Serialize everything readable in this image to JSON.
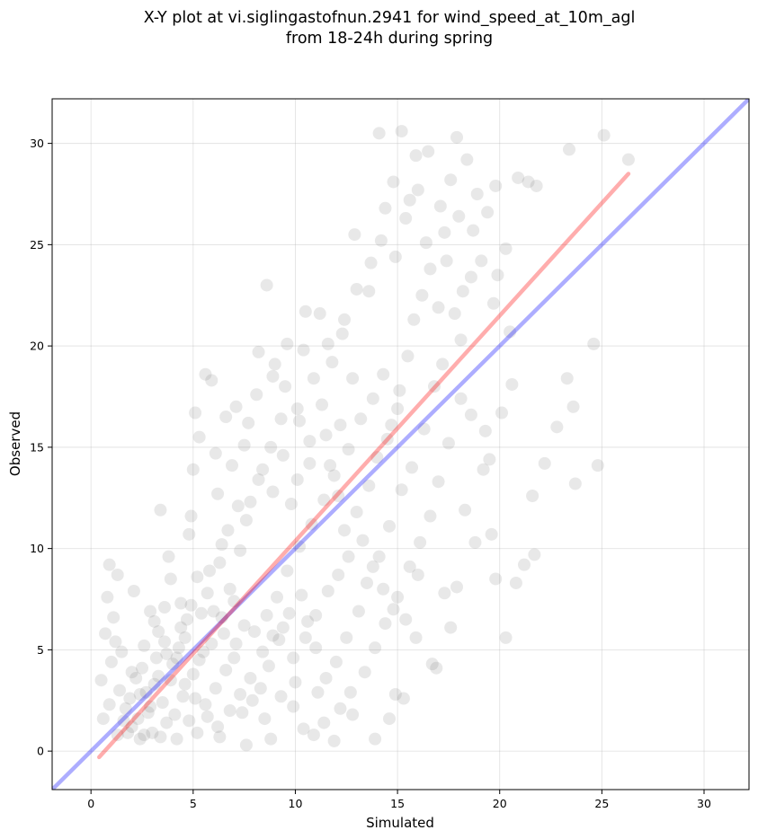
{
  "chart_data": {
    "type": "scatter",
    "title_lines": [
      "X-Y plot at vi.siglingastofnun.2941 for wind_speed_at_10m_agl",
      "from 18-24h during spring"
    ],
    "xlabel": "Simulated",
    "ylabel": "Observed",
    "xlim": [
      -1.9,
      32.2
    ],
    "ylim": [
      -1.9,
      32.2
    ],
    "xticks": [
      0,
      5,
      10,
      15,
      20,
      25,
      30
    ],
    "yticks": [
      0,
      5,
      10,
      15,
      20,
      25,
      30
    ],
    "grid": true,
    "point_color": "#505050",
    "point_opacity": 0.13,
    "points_sample": [
      [
        0.9,
        9.2
      ],
      [
        1.3,
        8.7
      ],
      [
        0.8,
        7.6
      ],
      [
        1.1,
        6.6
      ],
      [
        0.7,
        5.8
      ],
      [
        0.5,
        3.5
      ],
      [
        0.6,
        1.6
      ],
      [
        0.9,
        2.3
      ],
      [
        1.0,
        4.4
      ],
      [
        1.4,
        3.0
      ],
      [
        1.7,
        2.1
      ],
      [
        2.0,
        1.2
      ],
      [
        2.4,
        0.6
      ],
      [
        2.8,
        1.9
      ],
      [
        3.1,
        3.3
      ],
      [
        3.4,
        11.9
      ],
      [
        3.9,
        8.5
      ],
      [
        4.4,
        7.3
      ],
      [
        4.8,
        10.7
      ],
      [
        5.0,
        13.9
      ],
      [
        5.1,
        16.7
      ],
      [
        5.3,
        15.5
      ],
      [
        5.6,
        18.6
      ],
      [
        5.9,
        18.3
      ],
      [
        6.1,
        14.7
      ],
      [
        6.6,
        16.5
      ],
      [
        7.1,
        17.0
      ],
      [
        7.5,
        15.1
      ],
      [
        8.2,
        19.7
      ],
      [
        8.6,
        23.0
      ],
      [
        8.9,
        18.5
      ],
      [
        9.6,
        20.1
      ],
      [
        10.2,
        16.3
      ],
      [
        10.5,
        21.7
      ],
      [
        11.2,
        21.6
      ],
      [
        11.8,
        19.2
      ],
      [
        12.3,
        20.6
      ],
      [
        12.9,
        25.5
      ],
      [
        13.6,
        22.7
      ],
      [
        14.1,
        30.5
      ],
      [
        14.4,
        26.8
      ],
      [
        14.8,
        28.1
      ],
      [
        15.2,
        30.6
      ],
      [
        15.6,
        27.2
      ],
      [
        15.9,
        29.4
      ],
      [
        16.5,
        29.6
      ],
      [
        17.3,
        25.6
      ],
      [
        17.9,
        30.3
      ],
      [
        18.4,
        29.2
      ],
      [
        18.9,
        27.5
      ],
      [
        19.4,
        26.6
      ],
      [
        19.8,
        27.9
      ],
      [
        20.3,
        24.8
      ],
      [
        20.9,
        28.3
      ],
      [
        21.4,
        28.1
      ],
      [
        21.8,
        27.9
      ],
      [
        23.4,
        29.7
      ],
      [
        25.1,
        30.4
      ],
      [
        26.3,
        29.2
      ],
      [
        24.6,
        20.1
      ],
      [
        24.8,
        14.1
      ],
      [
        23.7,
        13.2
      ],
      [
        23.6,
        17.0
      ],
      [
        23.3,
        18.4
      ],
      [
        22.8,
        16.0
      ],
      [
        22.2,
        14.2
      ],
      [
        21.6,
        12.6
      ],
      [
        21.7,
        9.7
      ],
      [
        21.2,
        9.2
      ],
      [
        20.8,
        8.3
      ],
      [
        20.3,
        5.6
      ],
      [
        19.8,
        8.5
      ],
      [
        19.6,
        10.7
      ],
      [
        19.2,
        13.9
      ],
      [
        19.5,
        14.4
      ],
      [
        18.8,
        10.3
      ],
      [
        18.3,
        11.9
      ],
      [
        17.9,
        8.1
      ],
      [
        17.6,
        6.1
      ],
      [
        17.3,
        7.8
      ],
      [
        16.7,
        4.3
      ],
      [
        16.9,
        4.1
      ],
      [
        15.9,
        5.6
      ],
      [
        15.3,
        2.6
      ],
      [
        14.6,
        1.6
      ],
      [
        14.9,
        2.8
      ],
      [
        13.9,
        0.6
      ],
      [
        12.8,
        1.8
      ],
      [
        11.9,
        0.5
      ],
      [
        11.4,
        1.4
      ],
      [
        10.9,
        0.8
      ],
      [
        10.4,
        1.1
      ],
      [
        9.9,
        2.2
      ],
      [
        8.8,
        0.6
      ],
      [
        7.6,
        0.3
      ],
      [
        6.3,
        0.7
      ],
      [
        5.2,
        0.9
      ],
      [
        4.2,
        0.6
      ],
      [
        3.7,
        1.4
      ],
      [
        3.0,
        0.9
      ],
      [
        2.2,
        3.6
      ],
      [
        2.6,
        5.2
      ],
      [
        2.9,
        6.9
      ],
      [
        3.3,
        5.9
      ],
      [
        3.6,
        7.1
      ],
      [
        4.0,
        4.3
      ],
      [
        4.6,
        5.6
      ],
      [
        5.4,
        6.8
      ],
      [
        5.8,
        8.9
      ],
      [
        6.4,
        10.2
      ],
      [
        6.8,
        8.0
      ],
      [
        7.3,
        9.9
      ],
      [
        7.8,
        12.3
      ],
      [
        8.4,
        13.9
      ],
      [
        8.9,
        12.8
      ],
      [
        9.4,
        14.6
      ],
      [
        9.8,
        12.2
      ],
      [
        10.1,
        13.4
      ],
      [
        10.7,
        15.3
      ],
      [
        11.3,
        17.1
      ],
      [
        11.7,
        14.1
      ],
      [
        12.1,
        12.6
      ],
      [
        12.6,
        14.9
      ],
      [
        13.2,
        16.4
      ],
      [
        13.8,
        17.4
      ],
      [
        14.3,
        18.6
      ],
      [
        14.7,
        16.1
      ],
      [
        15.1,
        17.8
      ],
      [
        15.5,
        19.5
      ],
      [
        15.8,
        21.3
      ],
      [
        16.2,
        22.5
      ],
      [
        16.6,
        23.8
      ],
      [
        17.0,
        21.9
      ],
      [
        17.4,
        24.2
      ],
      [
        17.8,
        21.6
      ],
      [
        18.2,
        22.7
      ],
      [
        18.6,
        23.4
      ],
      [
        18.1,
        20.3
      ],
      [
        17.2,
        19.1
      ],
      [
        16.8,
        18.0
      ],
      [
        16.3,
        15.9
      ],
      [
        15.7,
        14.0
      ],
      [
        15.2,
        12.9
      ],
      [
        14.6,
        11.1
      ],
      [
        14.1,
        9.6
      ],
      [
        13.5,
        8.3
      ],
      [
        13.1,
        6.9
      ],
      [
        12.5,
        5.6
      ],
      [
        12.0,
        4.4
      ],
      [
        11.5,
        3.6
      ],
      [
        11.0,
        5.1
      ],
      [
        10.6,
        6.4
      ],
      [
        10.3,
        7.7
      ],
      [
        9.7,
        6.8
      ],
      [
        9.2,
        5.5
      ],
      [
        8.7,
        4.2
      ],
      [
        8.3,
        3.1
      ],
      [
        7.9,
        2.5
      ],
      [
        7.4,
        1.9
      ],
      [
        7.0,
        4.6
      ],
      [
        6.5,
        5.8
      ],
      [
        6.0,
        6.9
      ],
      [
        5.5,
        4.9
      ],
      [
        5.0,
        3.8
      ],
      [
        4.5,
        2.7
      ],
      [
        4.1,
        1.8
      ],
      [
        3.5,
        2.4
      ],
      [
        2.7,
        2.9
      ],
      [
        2.3,
        1.6
      ],
      [
        1.8,
        0.9
      ],
      [
        1.5,
        4.9
      ],
      [
        1.2,
        5.4
      ],
      [
        2.1,
        7.9
      ],
      [
        3.8,
        9.6
      ],
      [
        4.9,
        11.6
      ],
      [
        6.2,
        12.7
      ],
      [
        6.9,
        14.1
      ],
      [
        7.7,
        16.2
      ],
      [
        8.1,
        17.6
      ],
      [
        9.0,
        19.1
      ],
      [
        9.5,
        18.0
      ],
      [
        10.4,
        19.8
      ],
      [
        10.9,
        18.4
      ],
      [
        11.6,
        20.1
      ],
      [
        12.4,
        21.3
      ],
      [
        13.0,
        22.8
      ],
      [
        13.7,
        24.1
      ],
      [
        14.2,
        25.2
      ],
      [
        14.9,
        24.4
      ],
      [
        15.4,
        26.3
      ],
      [
        16.0,
        27.7
      ],
      [
        16.4,
        25.1
      ],
      [
        17.1,
        26.9
      ],
      [
        17.6,
        28.2
      ],
      [
        18.0,
        26.4
      ],
      [
        18.7,
        25.7
      ],
      [
        19.1,
        24.2
      ],
      [
        19.7,
        22.1
      ],
      [
        19.9,
        23.5
      ],
      [
        20.5,
        20.7
      ],
      [
        20.6,
        18.1
      ],
      [
        20.1,
        16.7
      ],
      [
        19.3,
        15.8
      ],
      [
        18.6,
        16.6
      ],
      [
        18.1,
        17.4
      ],
      [
        17.5,
        15.2
      ],
      [
        17.0,
        13.3
      ],
      [
        16.6,
        11.6
      ],
      [
        16.1,
        10.3
      ],
      [
        15.6,
        9.1
      ],
      [
        15.0,
        7.6
      ],
      [
        14.4,
        6.3
      ],
      [
        13.9,
        5.1
      ],
      [
        13.4,
        3.9
      ],
      [
        12.7,
        2.9
      ],
      [
        12.2,
        2.1
      ],
      [
        11.1,
        2.9
      ],
      [
        10.0,
        3.4
      ],
      [
        9.3,
        2.7
      ],
      [
        8.5,
        1.6
      ],
      [
        8.0,
        5.9
      ],
      [
        8.6,
        6.7
      ],
      [
        9.1,
        7.6
      ],
      [
        9.6,
        8.9
      ],
      [
        10.2,
        10.1
      ],
      [
        10.8,
        11.2
      ],
      [
        11.4,
        12.4
      ],
      [
        11.9,
        13.6
      ],
      [
        12.4,
        10.9
      ],
      [
        13.0,
        11.8
      ],
      [
        13.6,
        13.1
      ],
      [
        14.0,
        14.5
      ],
      [
        14.5,
        15.4
      ],
      [
        15.0,
        16.9
      ],
      [
        12.8,
        18.4
      ],
      [
        12.2,
        16.1
      ],
      [
        11.5,
        15.6
      ],
      [
        10.7,
        14.2
      ],
      [
        10.1,
        16.9
      ],
      [
        9.3,
        16.4
      ],
      [
        8.8,
        15.0
      ],
      [
        8.2,
        13.4
      ],
      [
        7.6,
        11.4
      ],
      [
        7.2,
        12.1
      ],
      [
        6.7,
        10.9
      ],
      [
        6.3,
        9.3
      ],
      [
        5.7,
        7.8
      ],
      [
        5.2,
        8.6
      ],
      [
        4.7,
        6.5
      ],
      [
        4.3,
        5.1
      ],
      [
        3.9,
        3.5
      ],
      [
        3.2,
        4.6
      ],
      [
        2.5,
        4.1
      ],
      [
        1.9,
        2.6
      ],
      [
        1.6,
        1.5
      ],
      [
        1.3,
        0.8
      ],
      [
        2.6,
        0.8
      ],
      [
        3.4,
        0.7
      ],
      [
        4.8,
        1.5
      ],
      [
        5.6,
        2.3
      ],
      [
        6.1,
        3.1
      ],
      [
        6.6,
        4.0
      ],
      [
        7.1,
        5.3
      ],
      [
        7.5,
        6.2
      ],
      [
        7.0,
        7.4
      ],
      [
        6.4,
        6.6
      ],
      [
        5.9,
        5.3
      ],
      [
        5.3,
        4.5
      ],
      [
        4.9,
        7.2
      ],
      [
        4.4,
        6.1
      ],
      [
        3.7,
        4.8
      ],
      [
        3.3,
        3.7
      ],
      [
        2.9,
        2.2
      ],
      [
        2.4,
        2.8
      ],
      [
        2.0,
        3.9
      ],
      [
        3.1,
        6.4
      ],
      [
        3.6,
        5.4
      ],
      [
        4.2,
        4.6
      ],
      [
        4.6,
        3.3
      ],
      [
        5.1,
        2.6
      ],
      [
        5.7,
        1.7
      ],
      [
        6.2,
        1.2
      ],
      [
        6.8,
        2.0
      ],
      [
        7.3,
        2.8
      ],
      [
        7.8,
        3.6
      ],
      [
        8.4,
        4.9
      ],
      [
        8.9,
        5.7
      ],
      [
        9.4,
        6.1
      ],
      [
        9.9,
        4.6
      ],
      [
        10.5,
        5.6
      ],
      [
        11.0,
        6.7
      ],
      [
        11.6,
        7.9
      ],
      [
        12.1,
        8.7
      ],
      [
        12.6,
        9.6
      ],
      [
        13.3,
        10.4
      ],
      [
        13.8,
        9.1
      ],
      [
        14.3,
        8.0
      ],
      [
        14.8,
        7.0
      ],
      [
        15.4,
        6.5
      ],
      [
        16.0,
        8.7
      ]
    ],
    "series": [
      {
        "type": "line",
        "role": "identity",
        "color": "#0000ff",
        "opacity": 0.32,
        "x": [
          -1.9,
          32.2
        ],
        "y": [
          -1.9,
          32.2
        ]
      },
      {
        "type": "line",
        "role": "regression",
        "color": "#ff0000",
        "opacity": 0.32,
        "x": [
          0.4,
          26.3
        ],
        "y": [
          -0.3,
          28.5
        ]
      }
    ]
  }
}
